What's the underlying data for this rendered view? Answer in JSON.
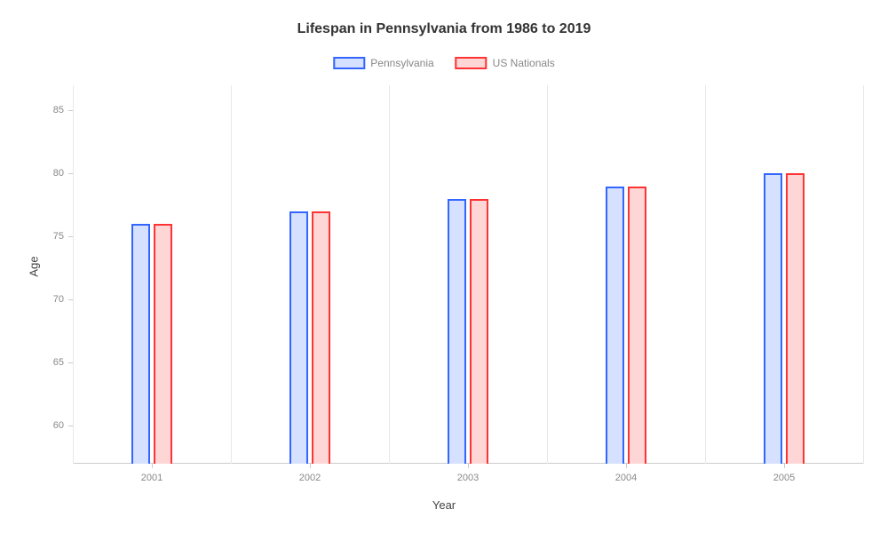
{
  "chart": {
    "type": "bar",
    "title": "Lifespan in Pennsylvania from 1986 to 2019",
    "title_fontsize": 16,
    "x_axis_label": "Year",
    "y_axis_label": "Age",
    "label_fontsize": 13,
    "tick_fontsize": 11,
    "background_color": "#ffffff",
    "grid_color": "#e8e8e8",
    "axis_color": "#cccccc",
    "tick_label_color": "#888888",
    "ylim": [
      57,
      87
    ],
    "yticks": [
      60,
      65,
      70,
      75,
      80,
      85
    ],
    "categories": [
      "2001",
      "2002",
      "2003",
      "2004",
      "2005"
    ],
    "series": [
      {
        "name": "Pennsylvania",
        "stroke_color": "#3366ff",
        "fill_color": "#d6e1ff",
        "values": [
          76,
          77,
          78,
          79,
          80
        ]
      },
      {
        "name": "US Nationals",
        "stroke_color": "#ff3333",
        "fill_color": "#ffd6d6",
        "values": [
          76,
          77,
          78,
          79,
          80
        ]
      }
    ],
    "group_width_pct": 26,
    "bar_gap_pct": 2,
    "legend_swatch_border_width": 2
  }
}
